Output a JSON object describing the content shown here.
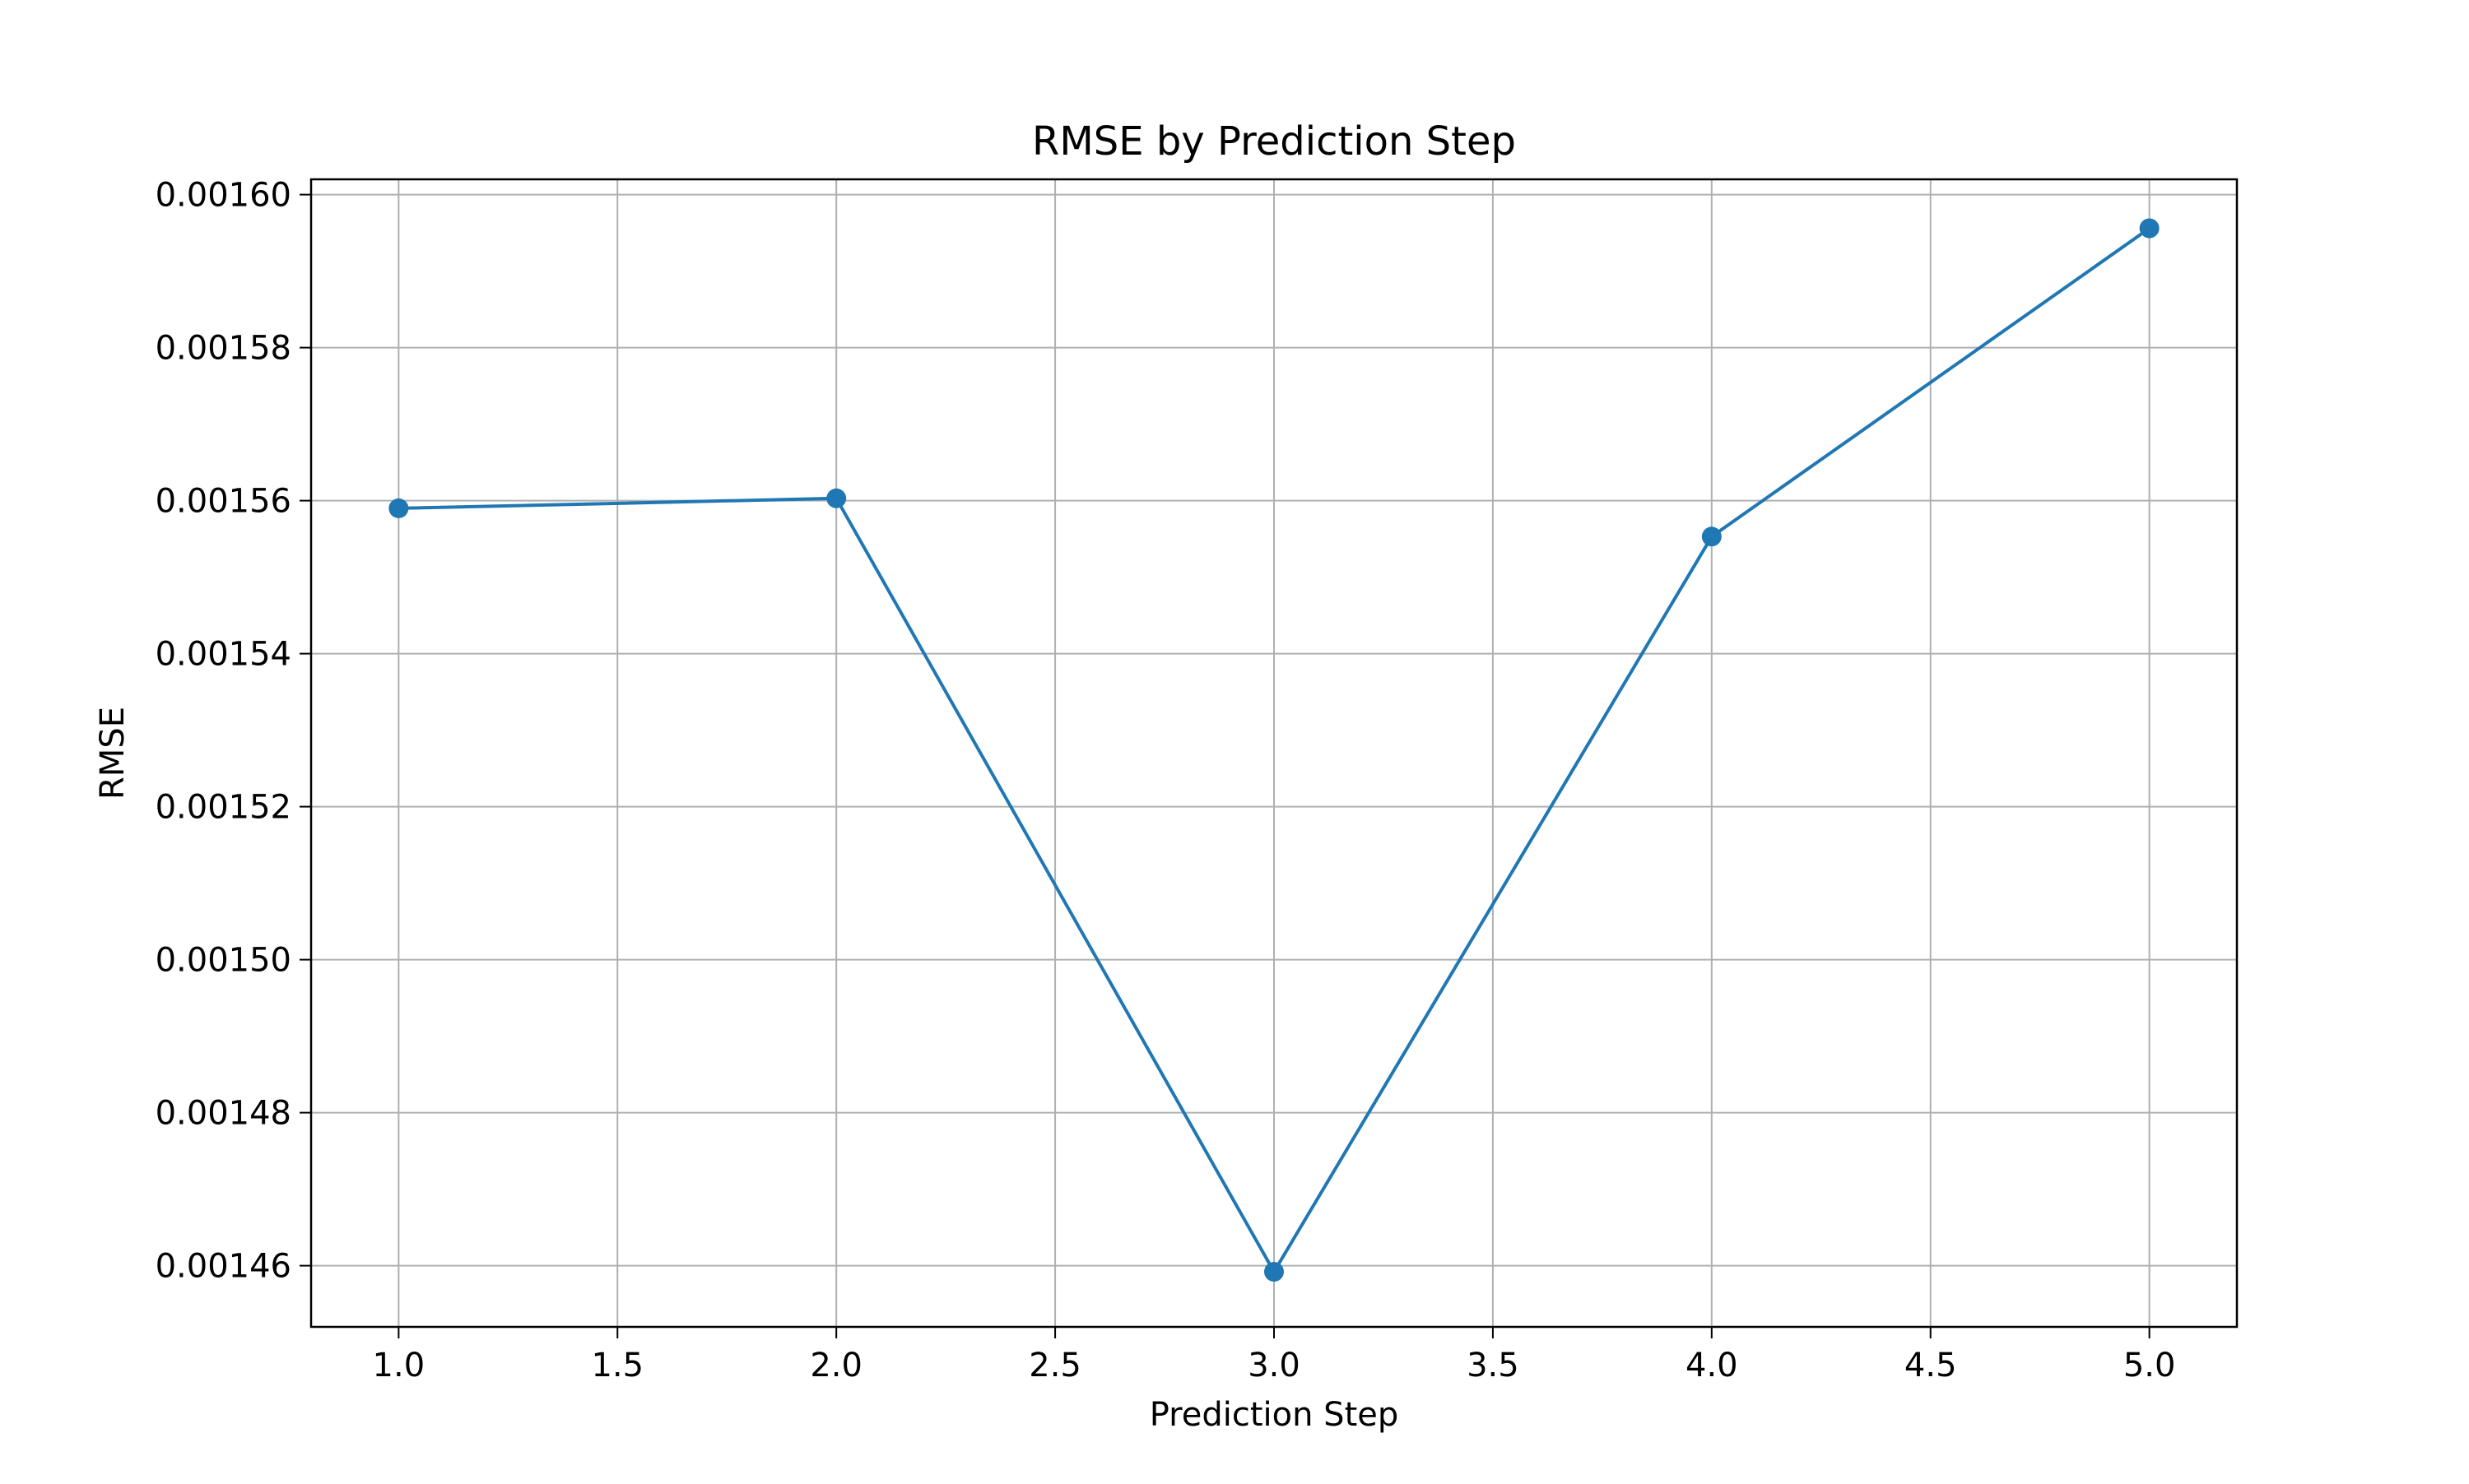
{
  "chart_data": {
    "type": "line",
    "title": "RMSE by Prediction Step",
    "xlabel": "Prediction Step",
    "ylabel": "RMSE",
    "xlim": [
      0.8,
      5.2
    ],
    "ylim": [
      0.001452,
      0.001602
    ],
    "x_ticks": [
      1.0,
      1.5,
      2.0,
      2.5,
      3.0,
      3.5,
      4.0,
      4.5,
      5.0
    ],
    "x_tick_labels": [
      "1.0",
      "1.5",
      "2.0",
      "2.5",
      "3.0",
      "3.5",
      "4.0",
      "4.5",
      "5.0"
    ],
    "y_ticks": [
      0.00146,
      0.00148,
      0.0015,
      0.00152,
      0.00154,
      0.00156,
      0.00158,
      0.0016
    ],
    "y_tick_labels": [
      "0.00146",
      "0.00148",
      "0.00150",
      "0.00152",
      "0.00154",
      "0.00156",
      "0.00158",
      "0.00160"
    ],
    "grid": true,
    "marker": "circle",
    "series": [
      {
        "color": "#1f77b4",
        "x": [
          1.0,
          2.0,
          3.0,
          4.0,
          5.0
        ],
        "values": [
          0.001559,
          0.0015603,
          0.0014592,
          0.0015553,
          0.0015956
        ]
      }
    ]
  }
}
